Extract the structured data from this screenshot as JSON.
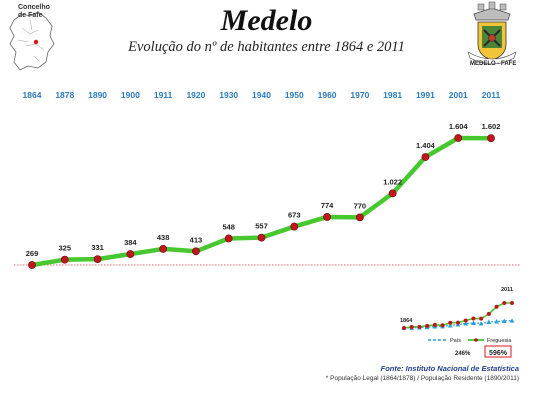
{
  "header": {
    "title": "Medelo",
    "subtitle": "Evolução do nº de habitantes entre 1864 e 2011",
    "map_label": "Concelho de Fafe",
    "crest_caption": "MEDELO - FAFE"
  },
  "footer": {
    "source": "Fonte: Instituto Nacional de Estatística",
    "note": "* População Legal (1864/1878) /  População Residente (1890/2011)"
  },
  "colors": {
    "line": "#46c82e",
    "marker": "#c0161c",
    "year": "#2c7bbf",
    "pais": "#2a9fd8",
    "ref_line": "#e0303a"
  },
  "chart_data": [
    {
      "type": "line",
      "title": "Evolução do nº de habitantes entre 1864 e 2011",
      "categories": [
        "1864",
        "1878",
        "1890",
        "1900",
        "1911",
        "1920",
        "1930",
        "1940",
        "1950",
        "1960",
        "1970",
        "1981",
        "1991",
        "2001",
        "2011"
      ],
      "series": [
        {
          "name": "Freguesia",
          "values": [
            269,
            325,
            331,
            384,
            438,
            413,
            548,
            557,
            673,
            774,
            770,
            1022,
            1404,
            1604,
            1602
          ],
          "labels": [
            "269",
            "325",
            "331",
            "384",
            "438",
            "413",
            "548",
            "557",
            "673",
            "774",
            "770",
            "1.022",
            "1.404",
            "1.604",
            "1.602"
          ]
        }
      ],
      "ylim": [
        0,
        1700
      ],
      "reference_value": 269,
      "grid": false
    },
    {
      "type": "line",
      "title": "",
      "x_start_label": "1864",
      "x_end_label": "2011",
      "series": [
        {
          "name": "País",
          "relative_growth": [
            1.0,
            1.03,
            1.1,
            1.16,
            1.3,
            1.32,
            1.5,
            1.7,
            1.9,
            2.0,
            1.9,
            2.2,
            2.3,
            2.4,
            2.46
          ]
        },
        {
          "name": "Freguesia",
          "relative_growth": [
            1.0,
            1.21,
            1.23,
            1.43,
            1.63,
            1.54,
            2.04,
            2.07,
            2.5,
            2.88,
            2.86,
            3.8,
            5.22,
            5.96,
            5.96
          ]
        }
      ],
      "legend": [
        "País",
        "Freguesia"
      ],
      "growth_labels": {
        "pais": "246%",
        "freguesia": "596%"
      }
    }
  ]
}
